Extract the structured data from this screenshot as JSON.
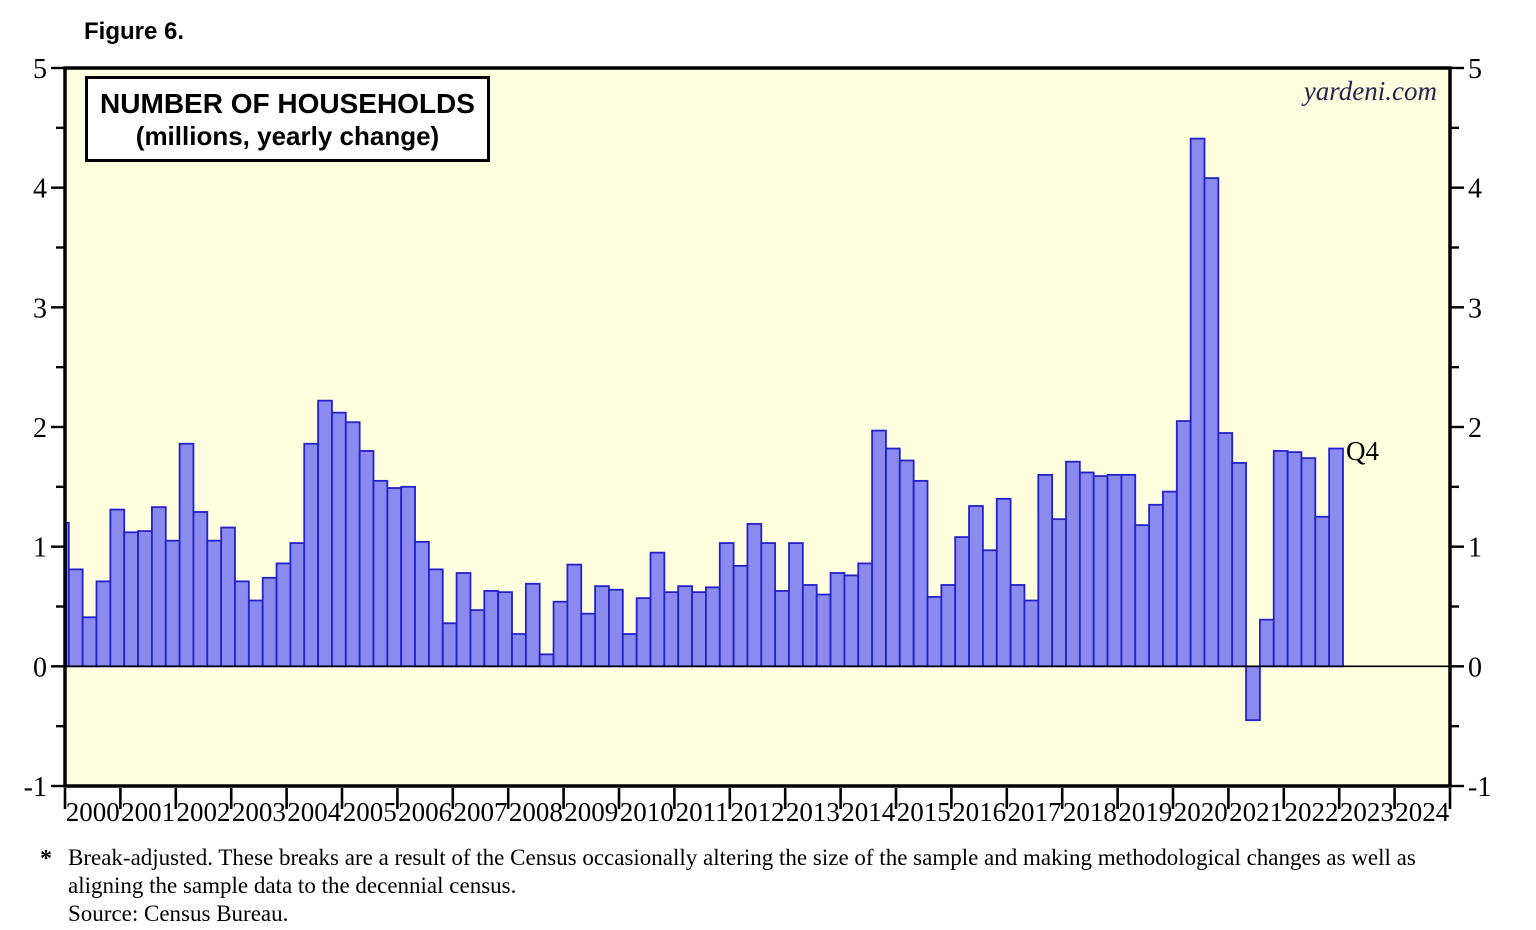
{
  "figure_label": "Figure 6.",
  "title_box": {
    "line1": "NUMBER OF HOUSEHOLDS",
    "line2": "(millions, yearly change)"
  },
  "watermark": "yardeni.com",
  "annotations": {
    "last_point_label": "Q4"
  },
  "footnote": {
    "marker": "*",
    "line1": "Break-adjusted. These breaks are a result of the Census occasionally altering the size of the sample and making methodological changes as well as",
    "line2": "aligning the sample data to the decennial census.",
    "line3": "Source: Census Bureau."
  },
  "colors": {
    "page_bg": "#ffffff",
    "plot_bg": "#ffffe0",
    "bar_fill": "#8b8bef",
    "bar_border": "#2222cc",
    "axis": "#000000",
    "zero_line": "#000000",
    "watermark_color": "#23234e"
  },
  "chart_data": {
    "type": "bar",
    "title": "NUMBER OF HOUSEHOLDS",
    "subtitle": "(millions, yearly change)",
    "series_name": "Number of households, yearly change (millions), quarterly, break-adjusted",
    "grid": false,
    "legend_position": "none",
    "ylim": [
      -1,
      5
    ],
    "y_ticks": [
      5,
      4,
      3,
      2,
      1,
      0,
      -1
    ],
    "y_minor_step": 0.5,
    "x_axis": {
      "start": 2000,
      "end": 2025
    },
    "x_tick_labels": [
      "2000",
      "2001",
      "2002",
      "2003",
      "2004",
      "2005",
      "2006",
      "2007",
      "2008",
      "2009",
      "2010",
      "2011",
      "2012",
      "2013",
      "2014",
      "2015",
      "2016",
      "2017",
      "2018",
      "2019",
      "2020",
      "2021",
      "2022",
      "2023",
      "2024"
    ],
    "leading_partial_bar": {
      "quarter": "1999Q4",
      "value": 1.2
    },
    "data_by_year": [
      {
        "year": 2000,
        "quarters": [
          0.81,
          0.41,
          0.71,
          1.31
        ]
      },
      {
        "year": 2001,
        "quarters": [
          1.12,
          1.13,
          1.33,
          1.05
        ]
      },
      {
        "year": 2002,
        "quarters": [
          1.86,
          1.29,
          1.05,
          1.16
        ]
      },
      {
        "year": 2003,
        "quarters": [
          0.71,
          0.55,
          0.74,
          0.86
        ]
      },
      {
        "year": 2004,
        "quarters": [
          1.03,
          1.86,
          2.22,
          2.12
        ]
      },
      {
        "year": 2005,
        "quarters": [
          2.04,
          1.8,
          1.55,
          1.49
        ]
      },
      {
        "year": 2006,
        "quarters": [
          1.5,
          1.04,
          0.81,
          0.36
        ]
      },
      {
        "year": 2007,
        "quarters": [
          0.78,
          0.47,
          0.63,
          0.62
        ]
      },
      {
        "year": 2008,
        "quarters": [
          0.27,
          0.69,
          0.1,
          0.54
        ]
      },
      {
        "year": 2009,
        "quarters": [
          0.85,
          0.44,
          0.67,
          0.64
        ]
      },
      {
        "year": 2010,
        "quarters": [
          0.27,
          0.57,
          0.95,
          0.62
        ]
      },
      {
        "year": 2011,
        "quarters": [
          0.67,
          0.62,
          0.66,
          1.03
        ]
      },
      {
        "year": 2012,
        "quarters": [
          0.84,
          1.19,
          1.03,
          0.63
        ]
      },
      {
        "year": 2013,
        "quarters": [
          1.03,
          0.68,
          0.6,
          0.78
        ]
      },
      {
        "year": 2014,
        "quarters": [
          0.76,
          0.86,
          1.97,
          1.82
        ]
      },
      {
        "year": 2015,
        "quarters": [
          1.72,
          1.55,
          0.58,
          0.68
        ]
      },
      {
        "year": 2016,
        "quarters": [
          1.08,
          1.34,
          0.97,
          1.4
        ]
      },
      {
        "year": 2017,
        "quarters": [
          0.68,
          0.55,
          1.6,
          1.23
        ]
      },
      {
        "year": 2018,
        "quarters": [
          1.71,
          1.62,
          1.59,
          1.6
        ]
      },
      {
        "year": 2019,
        "quarters": [
          1.6,
          1.18,
          1.35,
          1.46
        ]
      },
      {
        "year": 2020,
        "quarters": [
          2.05,
          4.41,
          4.08,
          1.95
        ]
      },
      {
        "year": 2021,
        "quarters": [
          1.7,
          -0.45,
          0.39,
          1.8
        ]
      },
      {
        "year": 2022,
        "quarters": [
          1.79,
          1.74,
          1.25,
          1.82
        ]
      }
    ]
  }
}
